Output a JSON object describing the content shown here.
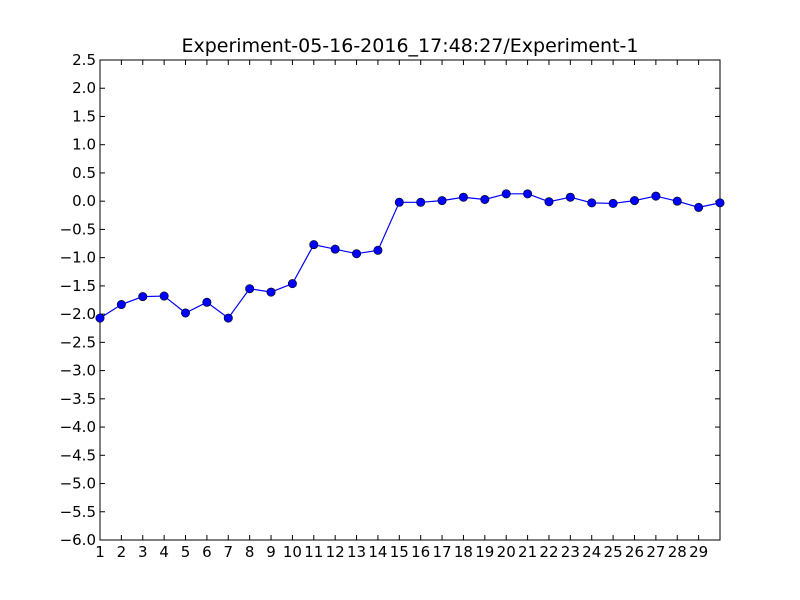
{
  "chart_data": {
    "type": "line",
    "title": "Experiment-05-16-2016_17:48:27/Experiment-1",
    "xlabel": "",
    "ylabel": "",
    "x": [
      1,
      2,
      3,
      4,
      5,
      6,
      7,
      8,
      9,
      10,
      11,
      12,
      13,
      14,
      15,
      16,
      17,
      18,
      19,
      20,
      21,
      22,
      23,
      24,
      25,
      26,
      27,
      28,
      29,
      30
    ],
    "xtick_labels": [
      "1",
      "2",
      "3",
      "4",
      "5",
      "6",
      "7",
      "8",
      "9",
      "10",
      "11",
      "12",
      "13",
      "14",
      "15",
      "16",
      "17",
      "18",
      "19",
      "20",
      "21",
      "22",
      "23",
      "24",
      "25",
      "26",
      "27",
      "28",
      "29"
    ],
    "xlim": [
      1,
      30
    ],
    "ylim": [
      -6.0,
      2.5
    ],
    "yticks": [
      2.5,
      2.0,
      1.5,
      1.0,
      0.5,
      0.0,
      -0.5,
      -1.0,
      -1.5,
      -2.0,
      -2.5,
      -3.0,
      -3.5,
      -4.0,
      -4.5,
      -5.0,
      -5.5,
      -6.0
    ],
    "ytick_labels": [
      "2.5",
      "2.0",
      "1.5",
      "1.0",
      "0.5",
      "0.0",
      "−0.5",
      "−1.0",
      "−1.5",
      "−2.0",
      "−2.5",
      "−3.0",
      "−3.5",
      "−4.0",
      "−4.5",
      "−5.0",
      "−5.5",
      "−6.0"
    ],
    "grid": false,
    "series": [
      {
        "color": "#0000ff",
        "marker": "circle",
        "values": [
          -2.07,
          -1.83,
          -1.69,
          -1.68,
          -1.98,
          -1.79,
          -2.07,
          -1.55,
          -1.61,
          -1.46,
          -0.77,
          -0.85,
          -0.93,
          -0.87,
          -0.02,
          -0.02,
          0.01,
          0.07,
          0.03,
          0.13,
          0.13,
          -0.01,
          0.07,
          -0.03,
          -0.04,
          0.01,
          0.09,
          0.0,
          -0.11,
          -0.03
        ]
      }
    ]
  }
}
